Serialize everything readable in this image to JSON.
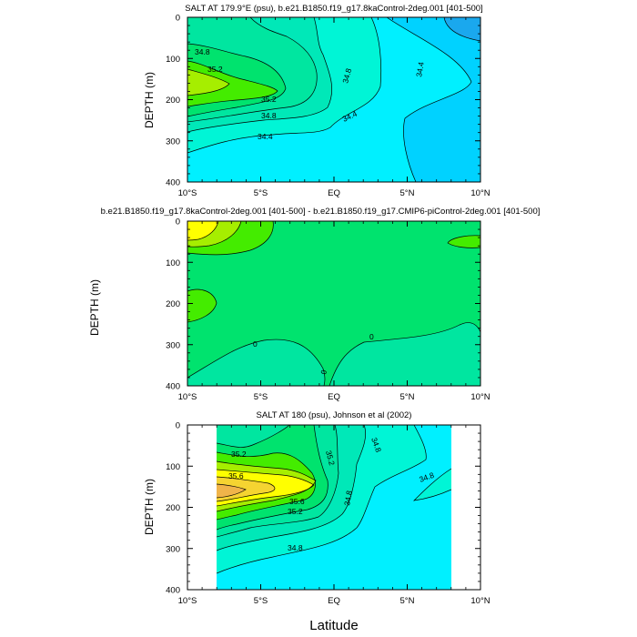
{
  "chart_data": [
    {
      "type": "contour",
      "title": "SALT AT 179.9°E (psu), b.e21.B1850.f19_g17.8kaControl-2deg.001 [401-500]",
      "xlabel": "",
      "ylabel": "DEPTH (m)",
      "xlim": [
        -10,
        10
      ],
      "ylim": [
        0,
        400
      ],
      "x_ticks": [
        "10°S",
        "5°S",
        "EQ",
        "5°N",
        "10°N"
      ],
      "y_ticks": [
        "0",
        "100",
        "200",
        "300",
        "400"
      ],
      "contour_labels": [
        "34.8",
        "35.2",
        "35.2",
        "34.8",
        "34.4",
        "34.8",
        "34.4",
        "34.4"
      ]
    },
    {
      "type": "contour",
      "title": "b.e21.B1850.f19_g17.8kaControl-2deg.001 [401-500] - b.e21.B1850.f19_g17.CMIP6-piControl-2deg.001 [401-500]",
      "xlabel": "",
      "ylabel": "DEPTH (m)",
      "xlim": [
        -10,
        10
      ],
      "ylim": [
        0,
        400
      ],
      "x_ticks": [
        "10°S",
        "5°S",
        "EQ",
        "5°N",
        "10°N"
      ],
      "y_ticks": [
        "0",
        "100",
        "200",
        "300",
        "400"
      ],
      "contour_labels": [
        "0",
        "0",
        "0"
      ]
    },
    {
      "type": "contour",
      "title": "SALT AT 180 (psu), Johnson et al (2002)",
      "xlabel": "Latitude",
      "ylabel": "DEPTH (m)",
      "xlim": [
        -10,
        10
      ],
      "ylim": [
        0,
        400
      ],
      "x_ticks": [
        "10°S",
        "5°S",
        "EQ",
        "5°N",
        "10°N"
      ],
      "y_ticks": [
        "0",
        "100",
        "200",
        "300",
        "400"
      ],
      "contour_labels": [
        "35.2",
        "35.6",
        "35.6",
        "35.2",
        "35.2",
        "34.8",
        "34.8",
        "34.8",
        "34.8"
      ]
    }
  ],
  "colors": {
    "deep_blue": "#1aa8ee",
    "blue": "#00d2ff",
    "cyan": "#00f0ff",
    "aqua": "#00f5d6",
    "teal": "#00e8b8",
    "mint": "#00e6a0",
    "green": "#00e36e",
    "lime": "#44ec00",
    "yellowgreen": "#a6ee00",
    "yellow": "#ffff00",
    "gold": "#f5d431",
    "orange": "#f0b44a"
  }
}
